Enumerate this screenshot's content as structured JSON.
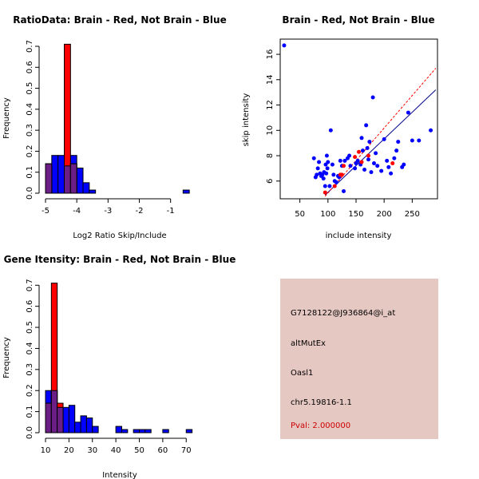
{
  "chart_data": [
    {
      "id": "ratio",
      "type": "histogram",
      "title": "RatioData: Brain - Red, Not Brain - Blue",
      "xlabel": "Log2 Ratio Skip/Include",
      "ylabel": "Frequency",
      "xlim": [
        -5,
        -0.2
      ],
      "ylim": [
        0,
        0.7
      ],
      "xticks": [
        -5,
        -4,
        -3,
        -2,
        -1
      ],
      "yticks": [
        0.0,
        0.1,
        0.2,
        0.3,
        0.4,
        0.5,
        0.6,
        0.7
      ],
      "series": [
        {
          "name": "Not Brain",
          "color": "#0000ff",
          "bins": [
            {
              "x0": -5.0,
              "x1": -4.8,
              "value": 0.14
            },
            {
              "x0": -4.8,
              "x1": -4.6,
              "value": 0.18
            },
            {
              "x0": -4.6,
              "x1": -4.4,
              "value": 0.18
            },
            {
              "x0": -4.4,
              "x1": -4.2,
              "value": 0.13
            },
            {
              "x0": -4.2,
              "x1": -4.0,
              "value": 0.18
            },
            {
              "x0": -4.0,
              "x1": -3.8,
              "value": 0.12
            },
            {
              "x0": -3.8,
              "x1": -3.6,
              "value": 0.05
            },
            {
              "x0": -3.6,
              "x1": -3.4,
              "value": 0.015
            },
            {
              "x0": -0.6,
              "x1": -0.4,
              "value": 0.015
            }
          ]
        },
        {
          "name": "Brain",
          "color": "#ff0000",
          "bins": [
            {
              "x0": -5.0,
              "x1": -4.8,
              "value": 0.14
            },
            {
              "x0": -4.4,
              "x1": -4.2,
              "value": 0.71
            },
            {
              "x0": -4.2,
              "x1": -4.0,
              "value": 0.14
            }
          ]
        }
      ]
    },
    {
      "id": "scatter",
      "type": "scatter",
      "title": "Brain - Red, Not Brain - Blue",
      "xlabel": "include intensity",
      "ylabel": "skip intensity",
      "xlim": [
        15,
        295
      ],
      "ylim": [
        4.6,
        17.2
      ],
      "xticks": [
        50,
        100,
        150,
        200,
        250
      ],
      "yticks": [
        6,
        8,
        10,
        12,
        14,
        16
      ],
      "series": [
        {
          "name": "Not Brain",
          "color": "#0000ff",
          "points": [
            [
              22,
              16.7
            ],
            [
              75,
              7.8
            ],
            [
              78,
              6.3
            ],
            [
              80,
              6.5
            ],
            [
              82,
              7.0
            ],
            [
              84,
              7.5
            ],
            [
              86,
              6.6
            ],
            [
              88,
              6.4
            ],
            [
              90,
              6.5
            ],
            [
              92,
              6.2
            ],
            [
              93,
              6.7
            ],
            [
              95,
              5.6
            ],
            [
              96,
              7.3
            ],
            [
              97,
              6.6
            ],
            [
              98,
              8.0
            ],
            [
              99,
              7.0
            ],
            [
              100,
              7.5
            ],
            [
              103,
              5.6
            ],
            [
              105,
              10.0
            ],
            [
              108,
              7.3
            ],
            [
              110,
              6.5
            ],
            [
              112,
              6.0
            ],
            [
              115,
              5.9
            ],
            [
              118,
              6.4
            ],
            [
              120,
              6.3
            ],
            [
              122,
              7.6
            ],
            [
              125,
              7.2
            ],
            [
              128,
              5.2
            ],
            [
              130,
              7.6
            ],
            [
              135,
              7.8
            ],
            [
              138,
              8.0
            ],
            [
              140,
              7.2
            ],
            [
              148,
              7.0
            ],
            [
              150,
              7.4
            ],
            [
              153,
              7.6
            ],
            [
              158,
              7.3
            ],
            [
              160,
              9.4
            ],
            [
              162,
              8.4
            ],
            [
              165,
              6.9
            ],
            [
              168,
              10.4
            ],
            [
              170,
              8.6
            ],
            [
              172,
              7.7
            ],
            [
              174,
              9.1
            ],
            [
              177,
              6.7
            ],
            [
              180,
              12.6
            ],
            [
              182,
              7.4
            ],
            [
              185,
              8.2
            ],
            [
              188,
              7.2
            ],
            [
              195,
              6.8
            ],
            [
              200,
              9.3
            ],
            [
              205,
              7.6
            ],
            [
              208,
              7.1
            ],
            [
              212,
              6.6
            ],
            [
              218,
              7.8
            ],
            [
              222,
              8.4
            ],
            [
              225,
              9.1
            ],
            [
              232,
              7.1
            ],
            [
              235,
              7.3
            ],
            [
              243,
              11.4
            ],
            [
              250,
              9.2
            ],
            [
              262,
              9.2
            ],
            [
              283,
              10.0
            ]
          ]
        },
        {
          "name": "Brain",
          "color": "#ff0000",
          "points": [
            [
              95,
              5.1
            ],
            [
              112,
              5.6
            ],
            [
              122,
              6.5
            ],
            [
              125,
              6.5
            ],
            [
              128,
              7.2
            ],
            [
              148,
              7.9
            ],
            [
              155,
              8.3
            ],
            [
              160,
              7.5
            ],
            [
              172,
              8.0
            ],
            [
              215,
              7.4
            ]
          ]
        }
      ],
      "fit_lines": [
        {
          "name": "Not Brain fit",
          "color": "#00008b",
          "from": [
            95,
            4.9
          ],
          "to": [
            292,
            13.2
          ]
        },
        {
          "name": "Brain fit",
          "color": "#ff0000",
          "from": [
            95,
            4.8
          ],
          "to": [
            292,
            14.9
          ],
          "dashed": true
        }
      ]
    },
    {
      "id": "intensity",
      "type": "histogram",
      "title": "Gene Itensity: Brain - Red, Not Brain - Blue",
      "xlabel": "Intensity",
      "ylabel": "Frequency",
      "xlim": [
        10,
        74
      ],
      "ylim": [
        0,
        0.72
      ],
      "xticks": [
        10,
        20,
        30,
        40,
        50,
        60,
        70
      ],
      "yticks": [
        0.0,
        0.1,
        0.2,
        0.3,
        0.4,
        0.5,
        0.6,
        0.7
      ],
      "series": [
        {
          "name": "Not Brain",
          "color": "#0000ff",
          "bins": [
            {
              "x0": 10,
              "x1": 12.5,
              "value": 0.2
            },
            {
              "x0": 12.5,
              "x1": 15,
              "value": 0.2
            },
            {
              "x0": 15,
              "x1": 17.5,
              "value": 0.12
            },
            {
              "x0": 17.5,
              "x1": 20,
              "value": 0.12
            },
            {
              "x0": 20,
              "x1": 22.5,
              "value": 0.13
            },
            {
              "x0": 22.5,
              "x1": 25,
              "value": 0.05
            },
            {
              "x0": 25,
              "x1": 27.5,
              "value": 0.08
            },
            {
              "x0": 27.5,
              "x1": 30,
              "value": 0.07
            },
            {
              "x0": 30,
              "x1": 32.5,
              "value": 0.03
            },
            {
              "x0": 40,
              "x1": 42.5,
              "value": 0.03
            },
            {
              "x0": 42.5,
              "x1": 45,
              "value": 0.015
            },
            {
              "x0": 47.5,
              "x1": 50,
              "value": 0.015
            },
            {
              "x0": 50,
              "x1": 52.5,
              "value": 0.015
            },
            {
              "x0": 52.5,
              "x1": 55,
              "value": 0.015
            },
            {
              "x0": 60,
              "x1": 62.5,
              "value": 0.015
            },
            {
              "x0": 70,
              "x1": 72.5,
              "value": 0.015
            }
          ]
        },
        {
          "name": "Brain",
          "color": "#ff0000",
          "bins": [
            {
              "x0": 10,
              "x1": 12.5,
              "value": 0.14
            },
            {
              "x0": 12.5,
              "x1": 15,
              "value": 0.71
            },
            {
              "x0": 15,
              "x1": 17.5,
              "value": 0.14
            }
          ]
        }
      ]
    }
  ],
  "info_panel": {
    "probe": "G7128122@J936864@i_at",
    "event_type": "altMutEx",
    "gene": "Oasl1",
    "location": "chr5.19816-1.1",
    "pval": "Pval: 2.000000",
    "background_color": "#e6c8c3",
    "pval_color": "#cc0000"
  }
}
